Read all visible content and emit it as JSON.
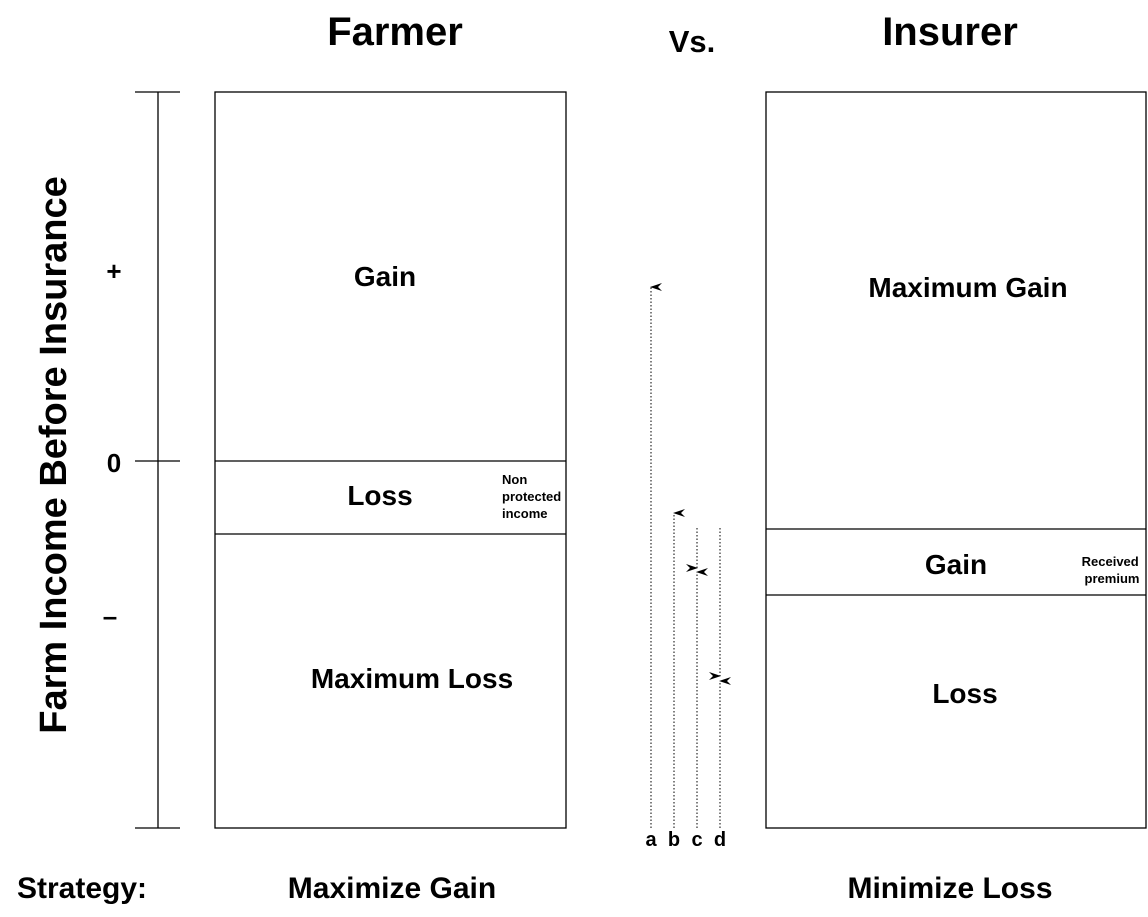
{
  "header": {
    "left": "Farmer",
    "middle": "Vs.",
    "right": "Insurer"
  },
  "axis": {
    "label": "Farm Income Before Insurance",
    "plus": "+",
    "zero": "0",
    "minus": "–"
  },
  "farmer": {
    "gain": "Gain",
    "loss": "Loss",
    "note_lines": [
      "Non",
      "protected",
      "income"
    ],
    "max_loss": "Maximum Loss"
  },
  "insurer": {
    "max_gain": "Maximum Gain",
    "gain": "Gain",
    "note_lines": [
      "Received",
      "premium"
    ],
    "loss": "Loss"
  },
  "arrows": {
    "labels": [
      "a",
      "b",
      "c",
      "d"
    ]
  },
  "footer": {
    "label": "Strategy:",
    "farmer": "Maximize Gain",
    "insurer": "Minimize Loss"
  }
}
